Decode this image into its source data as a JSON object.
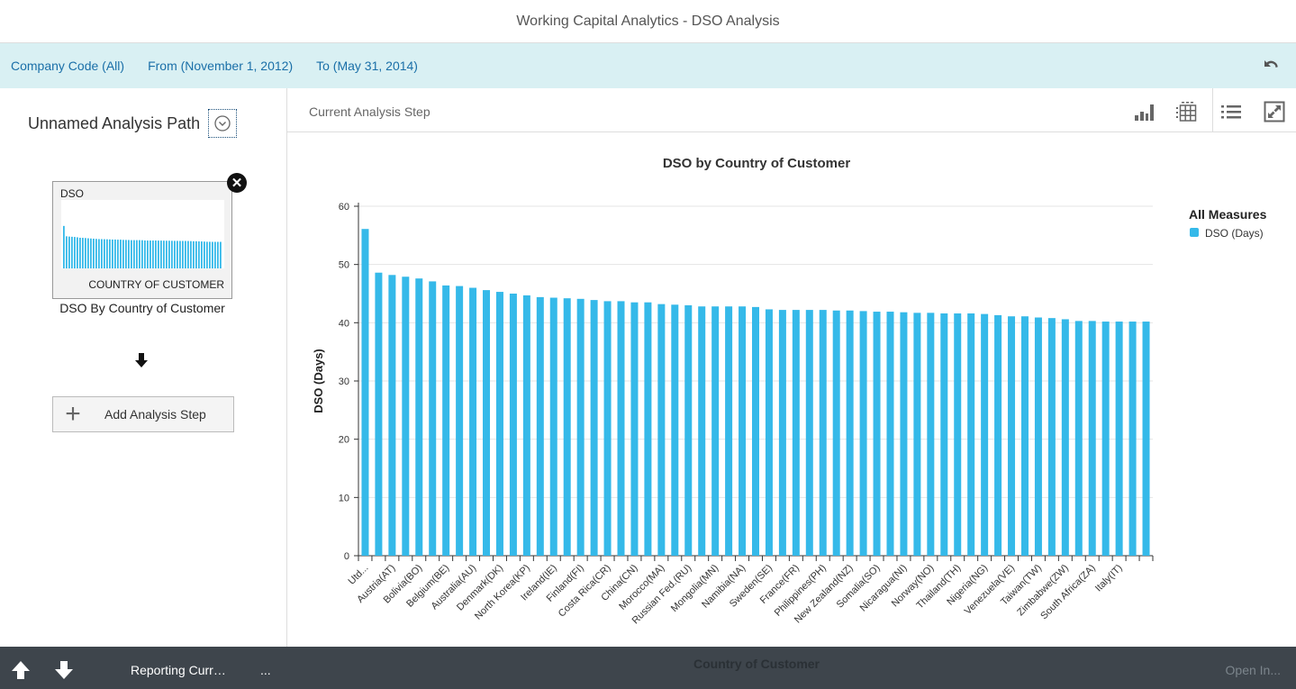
{
  "header": {
    "title": "Working Capital Analytics - DSO Analysis"
  },
  "filters": [
    {
      "label": "Company Code (All)"
    },
    {
      "label": "From (November 1, 2012)"
    },
    {
      "label": "To (May 31, 2014)"
    }
  ],
  "filter_icons": {
    "reset": "undo-icon"
  },
  "left_panel": {
    "path_title": "Unnamed Analysis Path",
    "step": {
      "measure": "DSO",
      "dimension": "COUNTRY OF CUSTOMER",
      "title": "DSO By Country of Customer"
    },
    "add_step_label": "Add Analysis Step"
  },
  "main": {
    "step_header": "Current Analysis Step",
    "toolbar_icons": [
      "bar-chart-icon",
      "table-icon",
      "list-icon",
      "fullscreen-icon"
    ]
  },
  "colors": {
    "bar": "#35b9e9",
    "filterbar": "#d9f0f3",
    "link": "#1a6fa8",
    "footer": "#3e454c"
  },
  "chart_data": {
    "type": "bar",
    "title": "DSO by Country of Customer",
    "xlabel": "Country of Customer",
    "ylabel": "DSO (Days)",
    "ylim": [
      0,
      60
    ],
    "yticks": [
      0,
      10,
      20,
      30,
      40,
      50,
      60
    ],
    "grid": true,
    "legend": {
      "title": "All Measures",
      "placement": "right",
      "entries": [
        "DSO (Days)"
      ]
    },
    "tick_labels_every_other_bar": [
      "Utd...",
      "Austria(AT)",
      "Bolivia(BO)",
      "Belgium(BE)",
      "Australia(AU)",
      "Denmark(DK)",
      "North Korea(KP)",
      "Ireland(IE)",
      "Finland(FI)",
      "Costa Rica(CR)",
      "China(CN)",
      "Morocco(MA)",
      "Russian Fed.(RU)",
      "Mongolia(MN)",
      "Namibia(NA)",
      "Sweden(SE)",
      "France(FR)",
      "Philippines(PH)",
      "New Zealand(NZ)",
      "Somalia(SO)",
      "Nicaragua(NI)",
      "Norway(NO)",
      "Thailand(TH)",
      "Nigeria(NG)",
      "Venezuela(VE)",
      "Taiwan(TW)",
      "Zimbabwe(ZW)",
      "South Africa(ZA)",
      "Italy(IT)"
    ],
    "series": [
      {
        "name": "DSO (Days)",
        "values": [
          56.1,
          48.6,
          48.2,
          47.9,
          47.6,
          47.1,
          46.4,
          46.3,
          46.0,
          45.6,
          45.3,
          45.0,
          44.7,
          44.4,
          44.3,
          44.2,
          44.1,
          43.9,
          43.7,
          43.7,
          43.5,
          43.5,
          43.2,
          43.1,
          43.0,
          42.8,
          42.8,
          42.8,
          42.8,
          42.7,
          42.3,
          42.2,
          42.2,
          42.2,
          42.2,
          42.1,
          42.1,
          42.0,
          41.9,
          41.9,
          41.8,
          41.7,
          41.7,
          41.6,
          41.6,
          41.6,
          41.5,
          41.3,
          41.1,
          41.1,
          40.9,
          40.8,
          40.6,
          40.3,
          40.3,
          40.2,
          40.2,
          40.2,
          40.2
        ]
      }
    ]
  },
  "footer": {
    "reporting": "Reporting Curr…",
    "more": "...",
    "open_in": "Open In..."
  }
}
